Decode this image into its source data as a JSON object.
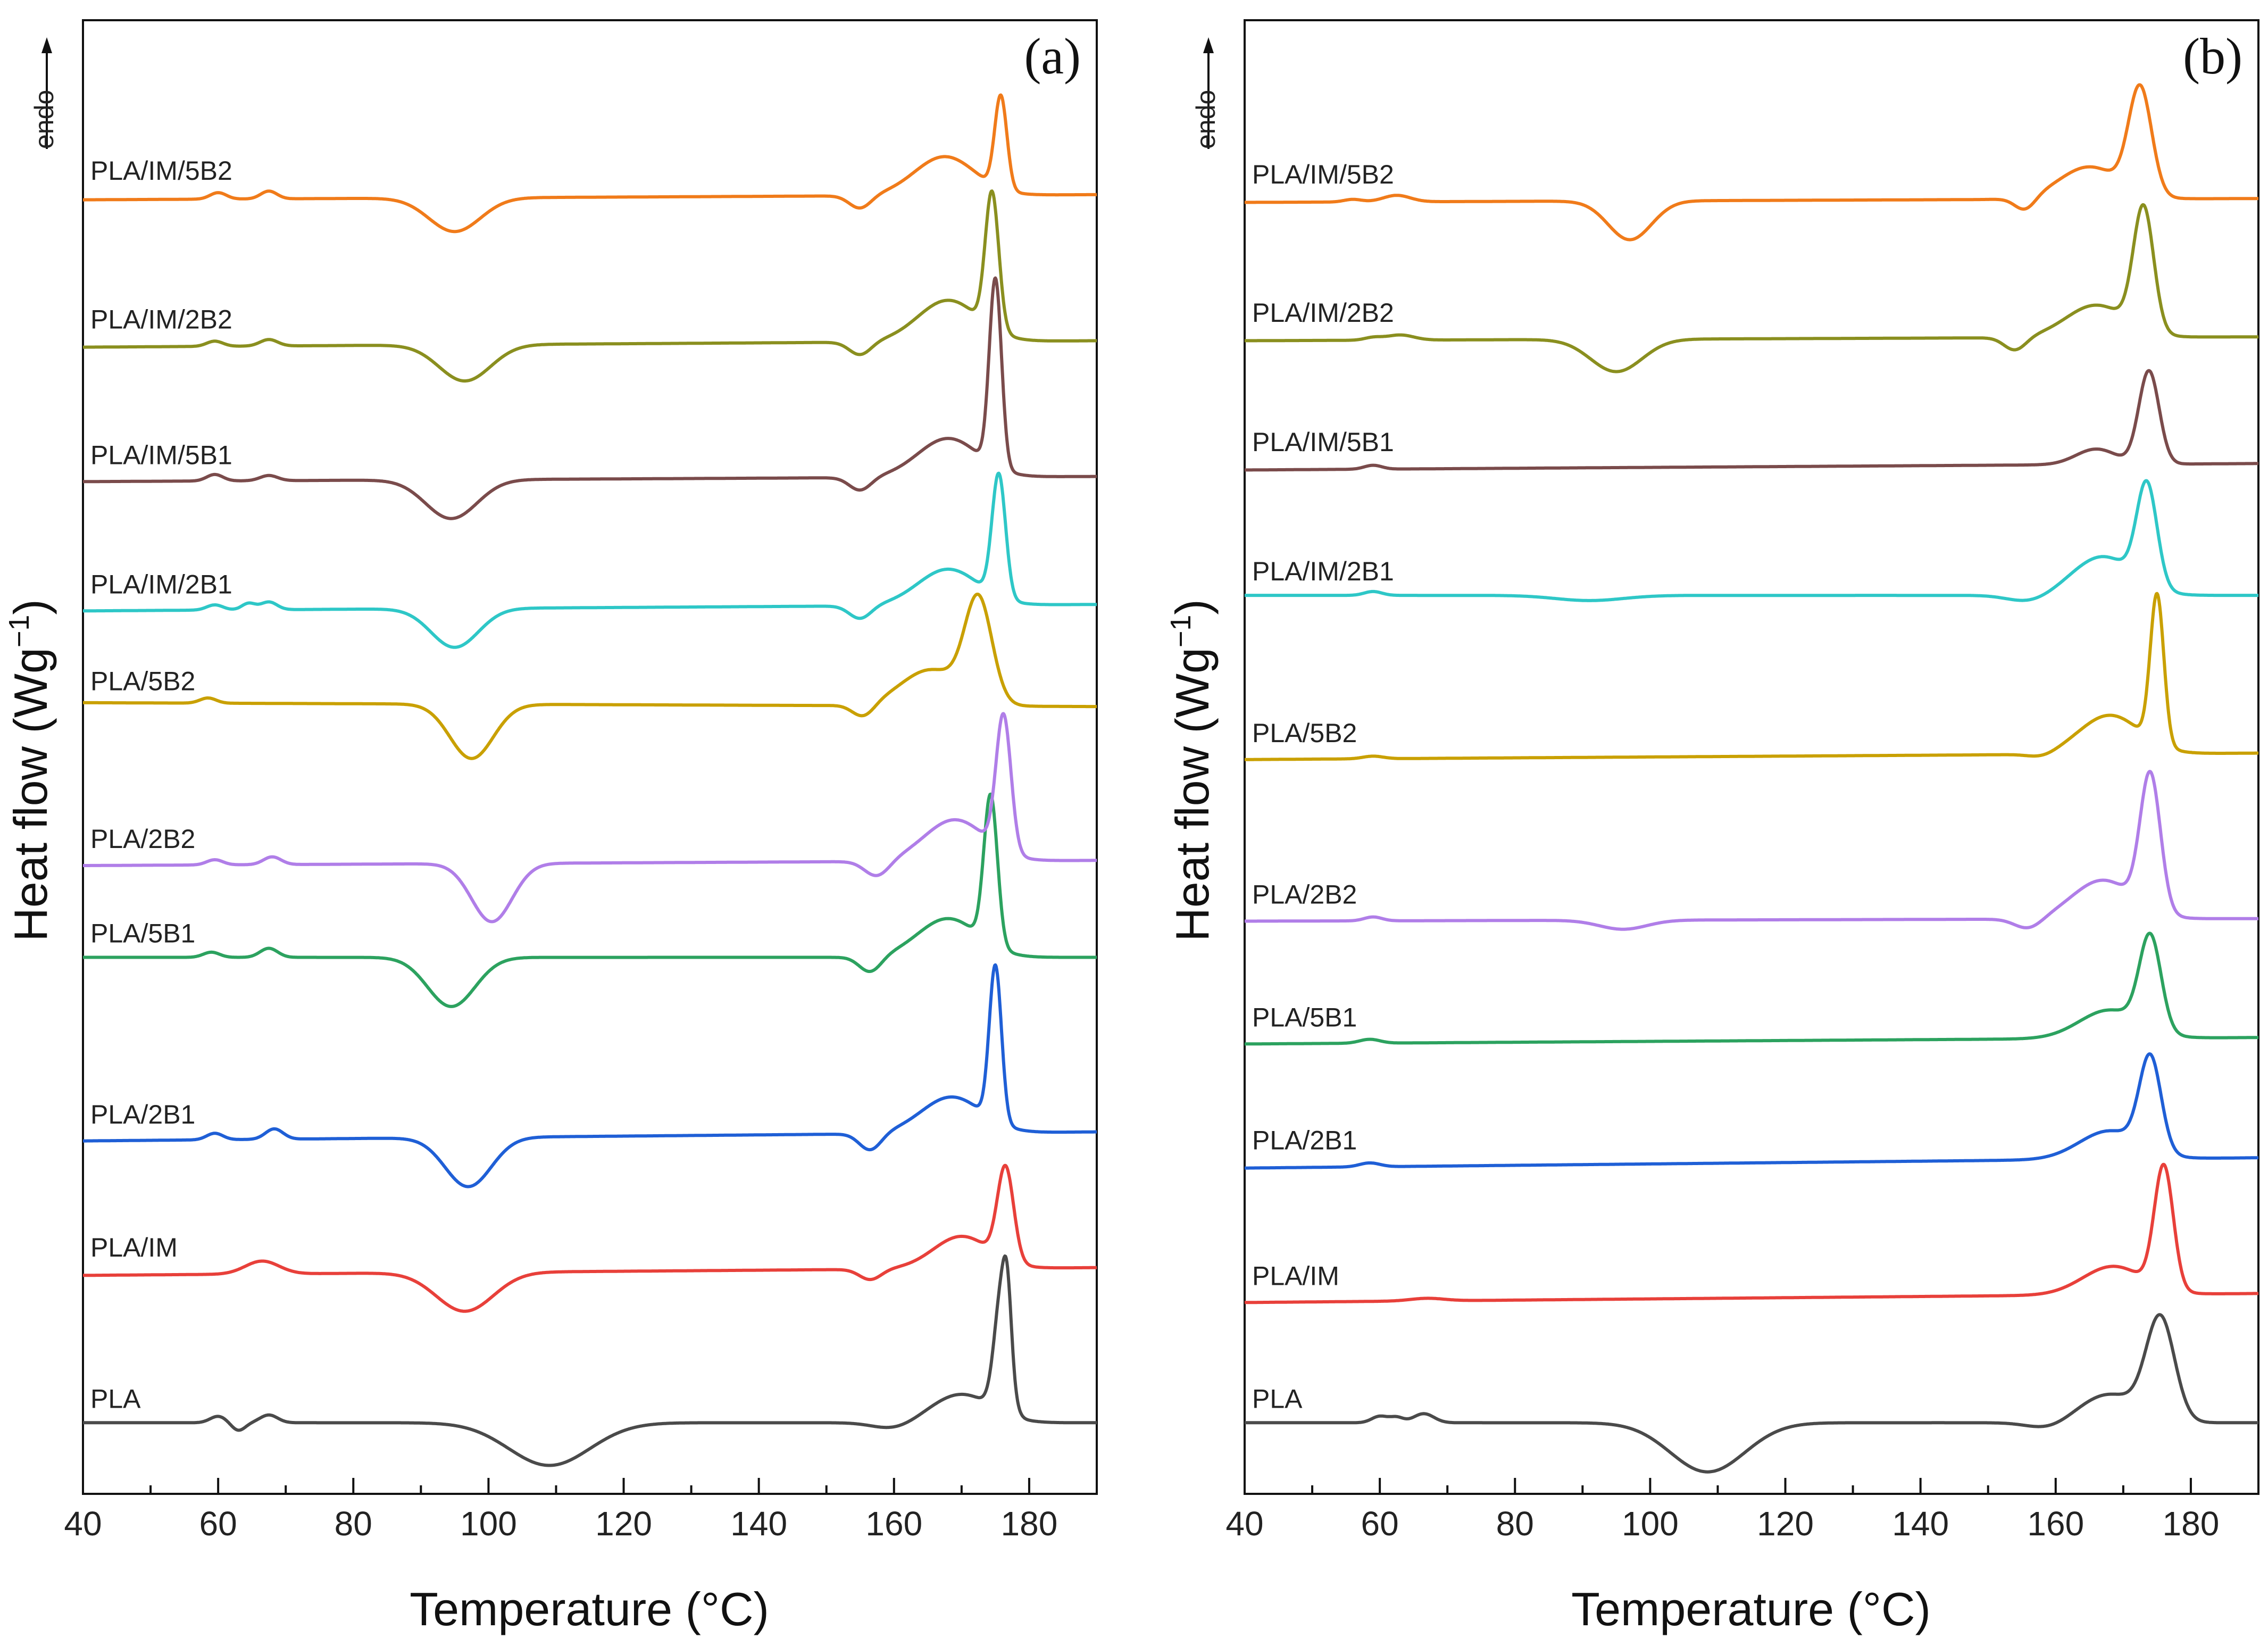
{
  "figure": {
    "ylabel": "Heat flow (Wg",
    "ylabel_sup": "−1",
    "ylabel_close": ")",
    "endo": "endo",
    "xlabel": "Temperature (°C)"
  },
  "chart_data": [
    {
      "type": "line",
      "panel": "(a)",
      "xlabel": "Temperature (°C)",
      "ylabel": "Heat flow (Wg−1)",
      "xlim": [
        40,
        190
      ],
      "xticks": [
        40,
        60,
        80,
        100,
        120,
        140,
        160,
        180
      ],
      "ylim": [
        0,
        11
      ],
      "yticks": "none",
      "grid": false,
      "legend": "inline labels above each curve",
      "series": [
        {
          "name": "PLA",
          "color": "#4a4a4a",
          "offset": 0.55,
          "baseline_start": 0.0,
          "baseline_end": 0.0,
          "features": [
            {
              "t": 60,
              "a": 0.05,
              "w": 1.2
            },
            {
              "t": 63,
              "a": -0.06,
              "w": 1.0
            },
            {
              "t": 67.5,
              "a": 0.06,
              "w": 1.3
            },
            {
              "t": 109,
              "a": -0.33,
              "w": 6
            },
            {
              "t": 160,
              "a": -0.05,
              "w": 3
            },
            {
              "t": 170,
              "a": 0.22,
              "w": 4.5
            },
            {
              "t": 176,
              "a": 0.95,
              "w": 1.1
            },
            {
              "t": 176.8,
              "a": 0.4,
              "w": 0.6
            }
          ]
        },
        {
          "name": "PLA/IM",
          "color": "#e8403a",
          "offset": 1.72,
          "baseline_start": -0.03,
          "baseline_end": 0.03,
          "features": [
            {
              "t": 66.5,
              "a": 0.1,
              "w": 2.5
            },
            {
              "t": 96.5,
              "a": -0.3,
              "w": 4.2
            },
            {
              "t": 156.5,
              "a": -0.08,
              "w": 1.6
            },
            {
              "t": 170,
              "a": 0.25,
              "w": 4.2
            },
            {
              "t": 176.5,
              "a": 0.72,
              "w": 1.2
            }
          ]
        },
        {
          "name": "PLA/2B1",
          "color": "#1f5fd6",
          "offset": 2.75,
          "baseline_start": -0.02,
          "baseline_end": 0.05,
          "features": [
            {
              "t": 59.5,
              "a": 0.05,
              "w": 1.2
            },
            {
              "t": 68.3,
              "a": 0.08,
              "w": 1.3
            },
            {
              "t": 97,
              "a": -0.38,
              "w": 3.4
            },
            {
              "t": 156.5,
              "a": -0.13,
              "w": 1.6
            },
            {
              "t": 168.5,
              "a": 0.28,
              "w": 4.5
            },
            {
              "t": 175,
              "a": 1.2,
              "w": 0.9
            }
          ]
        },
        {
          "name": "PLA/5B1",
          "color": "#2ca25f",
          "offset": 4.15,
          "baseline_start": 0.0,
          "baseline_end": 0.0,
          "features": [
            {
              "t": 59,
              "a": 0.04,
              "w": 1.2
            },
            {
              "t": 67.5,
              "a": 0.07,
              "w": 1.3
            },
            {
              "t": 94.5,
              "a": -0.38,
              "w": 3.5
            },
            {
              "t": 156.5,
              "a": -0.12,
              "w": 1.6
            },
            {
              "t": 168,
              "a": 0.3,
              "w": 4.5
            },
            {
              "t": 174.3,
              "a": 1.15,
              "w": 1.0
            }
          ]
        },
        {
          "name": "PLA/2B2",
          "color": "#b07ee8",
          "offset": 4.88,
          "baseline_start": -0.02,
          "baseline_end": 0.02,
          "features": [
            {
              "t": 59.5,
              "a": 0.04,
              "w": 1.2
            },
            {
              "t": 68,
              "a": 0.06,
              "w": 1.3
            },
            {
              "t": 100.5,
              "a": -0.45,
              "w": 3.0
            },
            {
              "t": 157.5,
              "a": -0.12,
              "w": 1.8
            },
            {
              "t": 169,
              "a": 0.32,
              "w": 4.5
            },
            {
              "t": 176.2,
              "a": 1.05,
              "w": 1.1
            }
          ]
        },
        {
          "name": "PLA/5B2",
          "color": "#c9a000",
          "offset": 6.1,
          "baseline_start": 0.02,
          "baseline_end": -0.01,
          "features": [
            {
              "t": 58.5,
              "a": 0.04,
              "w": 1.2
            },
            {
              "t": 97.5,
              "a": -0.42,
              "w": 3.2
            },
            {
              "t": 155.5,
              "a": -0.1,
              "w": 1.6
            },
            {
              "t": 165.5,
              "a": 0.28,
              "w": 4.5
            },
            {
              "t": 172.5,
              "a": 0.78,
              "w": 2.0
            }
          ]
        },
        {
          "name": "PLA/IM/2B1",
          "color": "#2ec7c7",
          "offset": 6.85,
          "baseline_start": -0.02,
          "baseline_end": 0.03,
          "features": [
            {
              "t": 59.5,
              "a": 0.04,
              "w": 1.2
            },
            {
              "t": 64.5,
              "a": 0.05,
              "w": 1.0
            },
            {
              "t": 67.5,
              "a": 0.06,
              "w": 1.2
            },
            {
              "t": 95,
              "a": -0.3,
              "w": 3.5
            },
            {
              "t": 155,
              "a": -0.1,
              "w": 1.6
            },
            {
              "t": 168,
              "a": 0.28,
              "w": 4.5
            },
            {
              "t": 175.5,
              "a": 0.95,
              "w": 1.0
            }
          ]
        },
        {
          "name": "PLA/IM/5B1",
          "color": "#7a4b4b",
          "offset": 7.85,
          "baseline_start": -0.02,
          "baseline_end": 0.02,
          "features": [
            {
              "t": 59.5,
              "a": 0.05,
              "w": 1.2
            },
            {
              "t": 67.5,
              "a": 0.04,
              "w": 1.3
            },
            {
              "t": 94.5,
              "a": -0.3,
              "w": 3.8
            },
            {
              "t": 155,
              "a": -0.1,
              "w": 1.6
            },
            {
              "t": 168,
              "a": 0.3,
              "w": 4.5
            },
            {
              "t": 175,
              "a": 1.45,
              "w": 0.9
            }
          ]
        },
        {
          "name": "PLA/IM/2B2",
          "color": "#8a8f1f",
          "offset": 8.9,
          "baseline_start": -0.03,
          "baseline_end": 0.02,
          "features": [
            {
              "t": 59.5,
              "a": 0.04,
              "w": 1.2
            },
            {
              "t": 67.5,
              "a": 0.05,
              "w": 1.3
            },
            {
              "t": 96.5,
              "a": -0.28,
              "w": 3.8
            },
            {
              "t": 155,
              "a": -0.1,
              "w": 1.6
            },
            {
              "t": 168,
              "a": 0.32,
              "w": 4.5
            },
            {
              "t": 174.5,
              "a": 1.05,
              "w": 1.0
            }
          ]
        },
        {
          "name": "PLA/IM/5B2",
          "color": "#f07b1a",
          "offset": 10.05,
          "baseline_start": -0.04,
          "baseline_end": 0.0,
          "features": [
            {
              "t": 60,
              "a": 0.05,
              "w": 1.2
            },
            {
              "t": 67.5,
              "a": 0.06,
              "w": 1.2
            },
            {
              "t": 95,
              "a": -0.26,
              "w": 3.8
            },
            {
              "t": 155,
              "a": -0.1,
              "w": 1.6
            },
            {
              "t": 167.5,
              "a": 0.3,
              "w": 4.5
            },
            {
              "t": 175.8,
              "a": 0.72,
              "w": 0.9
            }
          ]
        }
      ]
    },
    {
      "type": "line",
      "panel": "(b)",
      "xlabel": "Temperature (°C)",
      "ylabel": "Heat flow (Wg−1)",
      "xlim": [
        40,
        190
      ],
      "xticks": [
        40,
        60,
        80,
        100,
        120,
        140,
        160,
        180
      ],
      "ylim": [
        0,
        11
      ],
      "yticks": "none",
      "grid": false,
      "legend": "inline labels above each curve",
      "series": [
        {
          "name": "PLA",
          "color": "#4a4a4a",
          "offset": 0.55,
          "baseline_start": 0.0,
          "baseline_end": 0.0,
          "features": [
            {
              "t": 60,
              "a": 0.05,
              "w": 1.2
            },
            {
              "t": 62.5,
              "a": 0.04,
              "w": 1.0
            },
            {
              "t": 66.5,
              "a": 0.07,
              "w": 1.5
            },
            {
              "t": 108.5,
              "a": -0.38,
              "w": 5.5
            },
            {
              "t": 159,
              "a": -0.05,
              "w": 3
            },
            {
              "t": 168,
              "a": 0.22,
              "w": 4.5
            },
            {
              "t": 175.5,
              "a": 0.78,
              "w": 2.1
            }
          ]
        },
        {
          "name": "PLA/IM",
          "color": "#e8403a",
          "offset": 1.5,
          "baseline_start": -0.02,
          "baseline_end": 0.05,
          "features": [
            {
              "t": 67,
              "a": 0.02,
              "w": 2.5
            },
            {
              "t": 168.5,
              "a": 0.22,
              "w": 4.5
            },
            {
              "t": 176,
              "a": 0.95,
              "w": 1.4
            }
          ]
        },
        {
          "name": "PLA/2B1",
          "color": "#1f5fd6",
          "offset": 2.55,
          "baseline_start": -0.03,
          "baseline_end": 0.05,
          "features": [
            {
              "t": 58.5,
              "a": 0.03,
              "w": 1.5
            },
            {
              "t": 168,
              "a": 0.22,
              "w": 4.5
            },
            {
              "t": 174,
              "a": 0.72,
              "w": 1.6
            }
          ]
        },
        {
          "name": "PLA/5B1",
          "color": "#2ca25f",
          "offset": 3.5,
          "baseline_start": -0.02,
          "baseline_end": 0.03,
          "features": [
            {
              "t": 58.5,
              "a": 0.03,
              "w": 1.5
            },
            {
              "t": 168,
              "a": 0.22,
              "w": 4.5
            },
            {
              "t": 174,
              "a": 0.72,
              "w": 1.6
            }
          ]
        },
        {
          "name": "PLA/2B2",
          "color": "#b07ee8",
          "offset": 4.45,
          "baseline_start": -0.02,
          "baseline_end": 0.0,
          "features": [
            {
              "t": 59,
              "a": 0.03,
              "w": 1.3
            },
            {
              "t": 96,
              "a": -0.07,
              "w": 3.5
            },
            {
              "t": 156,
              "a": -0.08,
              "w": 2.0
            },
            {
              "t": 167,
              "a": 0.3,
              "w": 4.5
            },
            {
              "t": 174,
              "a": 1.05,
              "w": 1.5
            }
          ]
        },
        {
          "name": "PLA/5B2",
          "color": "#c9a000",
          "offset": 5.7,
          "baseline_start": -0.02,
          "baseline_end": 0.03,
          "features": [
            {
              "t": 59,
              "a": 0.02,
              "w": 1.5
            },
            {
              "t": 158,
              "a": -0.03,
              "w": 2.0
            },
            {
              "t": 168,
              "a": 0.3,
              "w": 4.5
            },
            {
              "t": 175,
              "a": 1.15,
              "w": 1.0
            }
          ]
        },
        {
          "name": "PLA/IM/2B1",
          "color": "#2ec7c7",
          "offset": 6.95,
          "baseline_start": 0.0,
          "baseline_end": 0.0,
          "features": [
            {
              "t": 59,
              "a": 0.03,
              "w": 1.3
            },
            {
              "t": 91,
              "a": -0.04,
              "w": 5
            },
            {
              "t": 156,
              "a": -0.05,
              "w": 3
            },
            {
              "t": 167,
              "a": 0.3,
              "w": 4.5
            },
            {
              "t": 173.5,
              "a": 0.78,
              "w": 1.5
            }
          ]
        },
        {
          "name": "PLA/IM/5B1",
          "color": "#7a4b4b",
          "offset": 7.95,
          "baseline_start": -0.03,
          "baseline_end": 0.02,
          "features": [
            {
              "t": 59,
              "a": 0.03,
              "w": 1.3
            },
            {
              "t": 166,
              "a": 0.12,
              "w": 3.0
            },
            {
              "t": 173.8,
              "a": 0.72,
              "w": 1.5
            }
          ]
        },
        {
          "name": "PLA/IM/2B2",
          "color": "#8a8f1f",
          "offset": 8.95,
          "baseline_start": -0.03,
          "baseline_end": 0.0,
          "features": [
            {
              "t": 59,
              "a": 0.02,
              "w": 1.3
            },
            {
              "t": 63,
              "a": 0.04,
              "w": 2.0
            },
            {
              "t": 95,
              "a": -0.25,
              "w": 3.8
            },
            {
              "t": 154,
              "a": -0.1,
              "w": 1.6
            },
            {
              "t": 166,
              "a": 0.25,
              "w": 4.5
            },
            {
              "t": 173,
              "a": 0.95,
              "w": 1.5
            }
          ]
        },
        {
          "name": "PLA/IM/5B2",
          "color": "#f07b1a",
          "offset": 10.02,
          "baseline_start": -0.03,
          "baseline_end": 0.0,
          "features": [
            {
              "t": 56,
              "a": 0.02,
              "w": 1.3
            },
            {
              "t": 62.5,
              "a": 0.05,
              "w": 2.0
            },
            {
              "t": 97,
              "a": -0.3,
              "w": 3.2
            },
            {
              "t": 155.5,
              "a": -0.1,
              "w": 1.5
            },
            {
              "t": 165,
              "a": 0.25,
              "w": 4.5
            },
            {
              "t": 172.5,
              "a": 0.82,
              "w": 1.7
            }
          ]
        }
      ]
    }
  ]
}
